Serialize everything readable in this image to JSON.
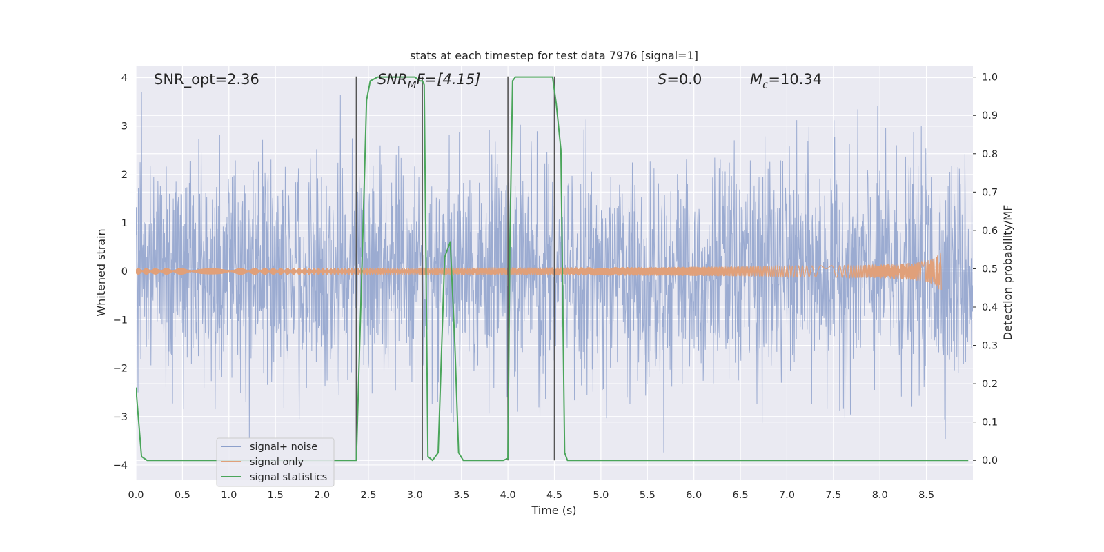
{
  "chart_data": {
    "type": "line",
    "title": "stats at each timestep for test data 7976 [signal=1]",
    "xlabel": "Time (s)",
    "ylabel_left": "Whitened strain",
    "ylabel_right": "Detection probability/MF",
    "xlim": [
      0.0,
      9.0
    ],
    "ylim_left": [
      -4.3,
      4.25
    ],
    "ylim_right": [
      -0.05,
      1.03
    ],
    "x_ticks": [
      "0.0",
      "0.5",
      "1.0",
      "1.5",
      "2.0",
      "2.5",
      "3.0",
      "3.5",
      "4.0",
      "4.5",
      "5.0",
      "5.5",
      "6.0",
      "6.5",
      "7.0",
      "7.5",
      "8.0",
      "8.5"
    ],
    "y_ticks_left": [
      "−4",
      "−3",
      "−2",
      "−1",
      "0",
      "1",
      "2",
      "3",
      "4"
    ],
    "y_ticks_right": [
      "0.0",
      "0.1",
      "0.2",
      "0.3",
      "0.4",
      "0.5",
      "0.6",
      "0.7",
      "0.8",
      "0.9",
      "1.0"
    ],
    "grid": true,
    "legend_placement": "lower-left",
    "annotations": {
      "snr_opt": "SNR_opt=2.36",
      "snr_mf_sym": "SNR",
      "snr_mf_sub": "M",
      "snr_mf_rest": "F=[4.15]",
      "s_sym": "S",
      "s_rest": "=0.0",
      "mc_sym": "M",
      "mc_sub": "c",
      "mc_rest": "=10.34"
    },
    "series": [
      {
        "name": "signal+ noise",
        "color": "#8da0cb",
        "style": "noise",
        "amplitude_std": 1.15,
        "x_range": [
          0.0,
          9.0
        ]
      },
      {
        "name": "signal only",
        "color": "#e0a07a",
        "style": "chirp",
        "peak_time": 8.66,
        "peak_amplitude": 0.45
      },
      {
        "name": "signal statistics",
        "color": "#4aa55a",
        "axis": "right",
        "x": [
          0.0,
          0.06,
          0.12,
          2.37,
          2.43,
          2.48,
          2.52,
          2.6,
          3.0,
          3.05,
          3.08,
          3.1,
          3.14,
          3.19,
          3.25,
          3.32,
          3.38,
          3.43,
          3.47,
          3.52,
          3.6,
          3.95,
          4.0,
          4.02,
          4.05,
          4.08,
          4.2,
          4.48,
          4.52,
          4.57,
          4.61,
          4.64,
          5.0,
          8.95
        ],
        "y": [
          0.19,
          0.01,
          0.0,
          0.0,
          0.5,
          0.94,
          0.99,
          1.0,
          1.0,
          0.99,
          0.99,
          0.98,
          0.01,
          0.0,
          0.02,
          0.53,
          0.57,
          0.3,
          0.02,
          0.0,
          0.0,
          0.0,
          0.005,
          0.55,
          0.99,
          1.0,
          1.0,
          1.0,
          0.93,
          0.81,
          0.02,
          0.0,
          0.0,
          0.0
        ]
      }
    ],
    "marker_lines": [
      {
        "x": 2.37,
        "y_top": 0.998,
        "y_bottom": 0.0
      },
      {
        "x": 3.08,
        "y_top": 0.998,
        "y_bottom": 0.0
      },
      {
        "x": 4.0,
        "y_top": 0.998,
        "y_bottom": 0.0
      },
      {
        "x": 4.5,
        "y_top": 0.998,
        "y_bottom": 0.0
      }
    ],
    "marker_line_color": "#555555",
    "background_color": "#eaeaf2",
    "grid_color": "#ffffff"
  }
}
